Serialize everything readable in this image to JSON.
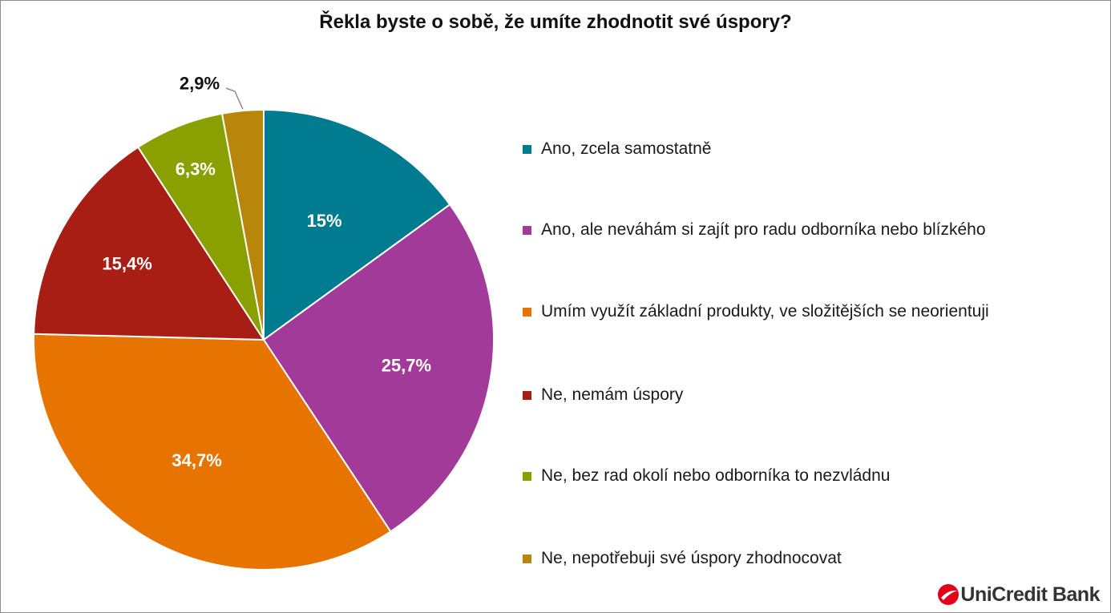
{
  "chart_data": {
    "type": "pie",
    "title": "Řekla byste o sobě, že umíte zhodnotit své úspory?",
    "slices": [
      {
        "label": "Ano, zcela samostatně",
        "value": 15.0,
        "display": "15%",
        "color": "#007b8f"
      },
      {
        "label": "Ano, ale neváhám si zajít pro radu odborníka nebo blízkého",
        "value": 25.7,
        "display": "25,7%",
        "color": "#a13a99"
      },
      {
        "label": "Umím využít základní produkty, ve složitějších se neorientuji",
        "value": 34.7,
        "display": "34,7%",
        "color": "#e87400"
      },
      {
        "label": "Ne, nemám úspory",
        "value": 15.4,
        "display": "15,4%",
        "color": "#a81d14"
      },
      {
        "label": "Ne, bez rad okolí nebo odborníka to nezvládnu",
        "value": 6.3,
        "display": "6,3%",
        "color": "#8aa000"
      },
      {
        "label": "Ne, nepotřebuji své úspory zhodnocovat",
        "value": 2.9,
        "display": "2,9%",
        "color": "#b8860b"
      }
    ],
    "legend": "right"
  },
  "brand": {
    "name": "UniCredit Bank",
    "accent": "#e2001a"
  }
}
